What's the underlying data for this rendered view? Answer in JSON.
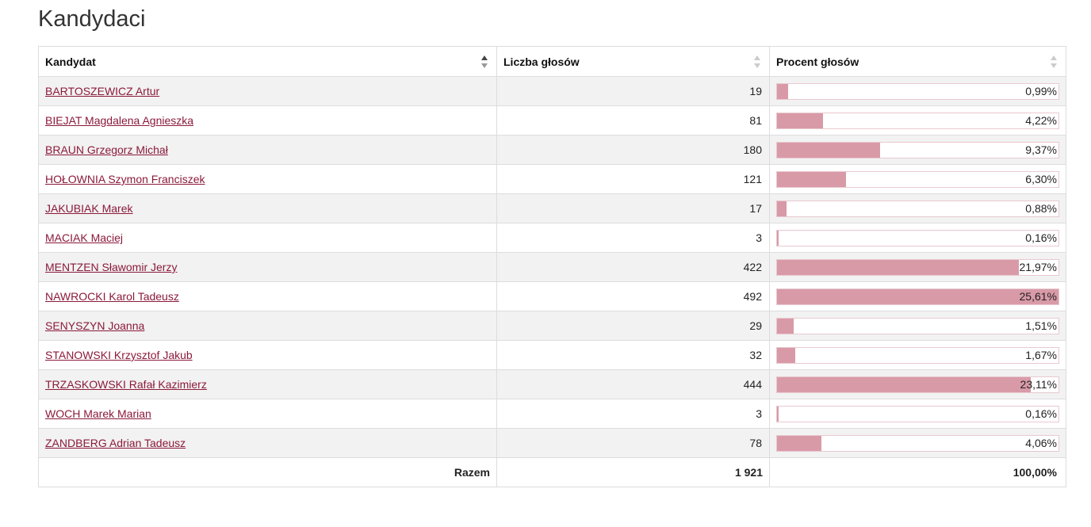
{
  "title": "Kandydaci",
  "table": {
    "headers": {
      "candidate": "Kandydat",
      "votes": "Liczba głosów",
      "percent": "Procent głosów"
    },
    "sort": {
      "column": "candidate",
      "direction": "ascending"
    },
    "rows": [
      {
        "name": "BARTOSZEWICZ Artur",
        "votes": "19",
        "percent_label": "0,99%",
        "percent": 0.99
      },
      {
        "name": "BIEJAT Magdalena Agnieszka",
        "votes": "81",
        "percent_label": "4,22%",
        "percent": 4.22
      },
      {
        "name": "BRAUN Grzegorz Michał",
        "votes": "180",
        "percent_label": "9,37%",
        "percent": 9.37
      },
      {
        "name": "HOŁOWNIA Szymon Franciszek",
        "votes": "121",
        "percent_label": "6,30%",
        "percent": 6.3
      },
      {
        "name": "JAKUBIAK Marek",
        "votes": "17",
        "percent_label": "0,88%",
        "percent": 0.88
      },
      {
        "name": "MACIAK Maciej",
        "votes": "3",
        "percent_label": "0,16%",
        "percent": 0.16
      },
      {
        "name": "MENTZEN Sławomir Jerzy",
        "votes": "422",
        "percent_label": "21,97%",
        "percent": 21.97
      },
      {
        "name": "NAWROCKI Karol Tadeusz",
        "votes": "492",
        "percent_label": "25,61%",
        "percent": 25.61
      },
      {
        "name": "SENYSZYN Joanna",
        "votes": "29",
        "percent_label": "1,51%",
        "percent": 1.51
      },
      {
        "name": "STANOWSKI Krzysztof Jakub",
        "votes": "32",
        "percent_label": "1,67%",
        "percent": 1.67
      },
      {
        "name": "TRZASKOWSKI Rafał Kazimierz",
        "votes": "444",
        "percent_label": "23,11%",
        "percent": 23.11
      },
      {
        "name": "WOCH Marek Marian",
        "votes": "3",
        "percent_label": "0,16%",
        "percent": 0.16
      },
      {
        "name": "ZANDBERG Adrian Tadeusz",
        "votes": "78",
        "percent_label": "4,06%",
        "percent": 4.06
      }
    ],
    "bar_scale_max_percent": 25.61,
    "footer": {
      "label": "Razem",
      "votes": "1 921",
      "percent": "100,00%"
    }
  },
  "colors": {
    "link": "#8b1a3b",
    "bar_fill": "#d99aa8",
    "bar_border": "#e8c9cf",
    "row_stripe": "#f2f2f2"
  }
}
